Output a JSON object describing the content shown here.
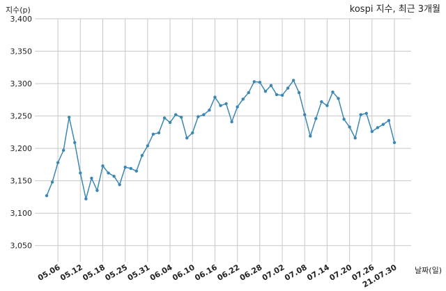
{
  "chart_data": {
    "type": "line",
    "title": "kospi 지수, 최근 3개월",
    "y_label": "지수(p)",
    "x_label": "날짜(일)",
    "categories": [
      null,
      null,
      "05.06",
      null,
      null,
      null,
      "05.12",
      null,
      null,
      null,
      "05.18",
      null,
      null,
      null,
      "05.25",
      null,
      null,
      null,
      "05.31",
      null,
      null,
      null,
      "06.04",
      null,
      null,
      null,
      "06.10",
      null,
      null,
      null,
      "06.16",
      null,
      null,
      null,
      "06.22",
      null,
      null,
      null,
      "06.28",
      null,
      null,
      null,
      "07.02",
      null,
      null,
      null,
      "07.08",
      null,
      null,
      null,
      "07.14",
      null,
      null,
      null,
      "07.20",
      null,
      null,
      null,
      "07.26",
      null,
      null,
      null,
      "21.07.30"
    ],
    "series": [
      {
        "name": "kospi",
        "color": "#3a87b5",
        "values": [
          3127,
          3148,
          3178,
          3197,
          3248,
          3209,
          3162,
          3122,
          3154,
          3135,
          3173,
          3162,
          3157,
          3144,
          3171,
          3169,
          3165,
          3189,
          3204,
          3222,
          3224,
          3247,
          3240,
          3252,
          3248,
          3216,
          3224,
          3249,
          3252,
          3259,
          3279,
          3266,
          3269,
          3241,
          3264,
          3276,
          3286,
          3303,
          3302,
          3288,
          3297,
          3283,
          3282,
          3293,
          3305,
          3286,
          3252,
          3219,
          3246,
          3272,
          3266,
          3287,
          3277,
          3245,
          3233,
          3216,
          3252,
          3254,
          3226,
          3232,
          3237,
          3243,
          3209
        ]
      }
    ],
    "ylim": [
      3025,
      3400
    ],
    "yticks": [
      {
        "value": 3050,
        "label": "3,050"
      },
      {
        "value": 3100,
        "label": "3,100"
      },
      {
        "value": 3150,
        "label": "3,150"
      },
      {
        "value": 3200,
        "label": "3,200"
      },
      {
        "value": 3250,
        "label": "3,250"
      },
      {
        "value": 3300,
        "label": "3,300"
      },
      {
        "value": 3350,
        "label": "3,350"
      },
      {
        "value": 3400,
        "label": "3,400"
      }
    ],
    "grid": true
  }
}
